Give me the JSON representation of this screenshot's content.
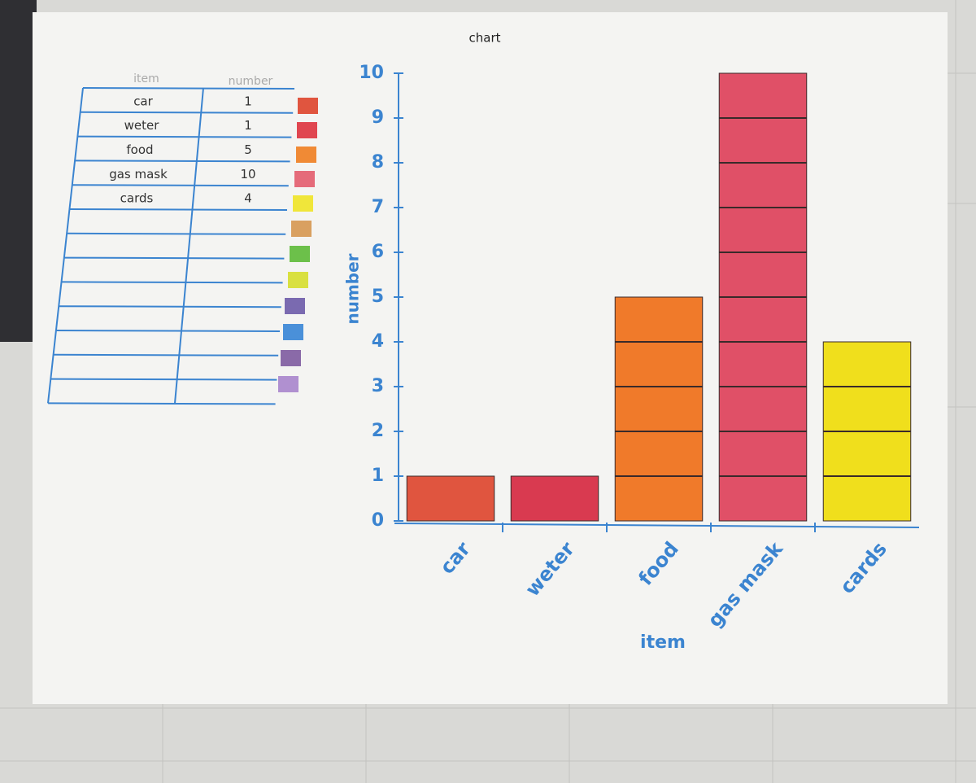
{
  "table": {
    "headers": [
      "item",
      "number"
    ],
    "rows": [
      [
        "car",
        "1"
      ],
      [
        "weter",
        "1"
      ],
      [
        "food",
        "5"
      ],
      [
        "gas mask",
        "10"
      ],
      [
        "cards",
        "4"
      ]
    ]
  },
  "chart_data": {
    "type": "bar",
    "title": "chart",
    "x_label": "item",
    "y_label": "number",
    "categories": [
      "car",
      "weter",
      "food",
      "gas mask",
      "cards"
    ],
    "values": [
      1,
      1,
      5,
      10,
      4
    ],
    "colors": [
      "#e0553f",
      "#d93a50",
      "#f07a2a",
      "#e05067",
      "#f0df1c"
    ],
    "ylim": [
      0,
      10
    ],
    "yticks": [
      0,
      1,
      2,
      3,
      4,
      5,
      6,
      7,
      8,
      9,
      10
    ],
    "grid": false
  }
}
